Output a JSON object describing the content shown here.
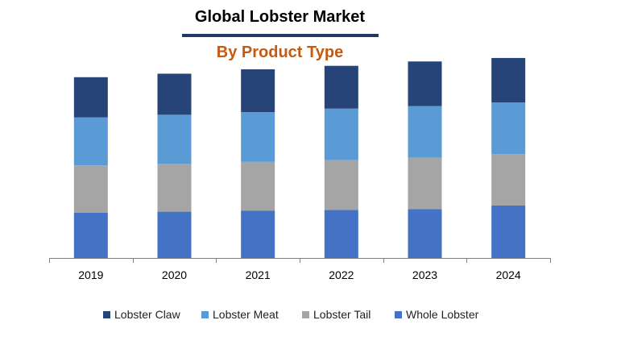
{
  "chart_data": {
    "type": "bar",
    "stacked": true,
    "title": "Global Lobster Market",
    "subtitle": "By Product Type",
    "categories": [
      "2019",
      "2020",
      "2021",
      "2022",
      "2023",
      "2024"
    ],
    "series": [
      {
        "name": "Whole Lobster",
        "color": "#4472c4",
        "values": [
          52,
          53,
          54,
          55,
          56,
          60
        ]
      },
      {
        "name": "Lobster Tail",
        "color": "#a5a5a5",
        "values": [
          54,
          55,
          56,
          57,
          59,
          59
        ]
      },
      {
        "name": "Lobster Meat",
        "color": "#5b9bd5",
        "values": [
          55,
          56,
          57,
          59,
          59,
          59
        ]
      },
      {
        "name": "Lobster Claw",
        "color": "#264478",
        "values": [
          46,
          47,
          49,
          49,
          51,
          51
        ]
      }
    ],
    "legend_order": [
      "Lobster Claw",
      "Lobster Meat",
      "Lobster Tail",
      "Whole Lobster"
    ],
    "ylim": [
      0,
      240
    ],
    "xlabel": "",
    "ylabel": "",
    "grid": false,
    "legend_position": "bottom"
  }
}
